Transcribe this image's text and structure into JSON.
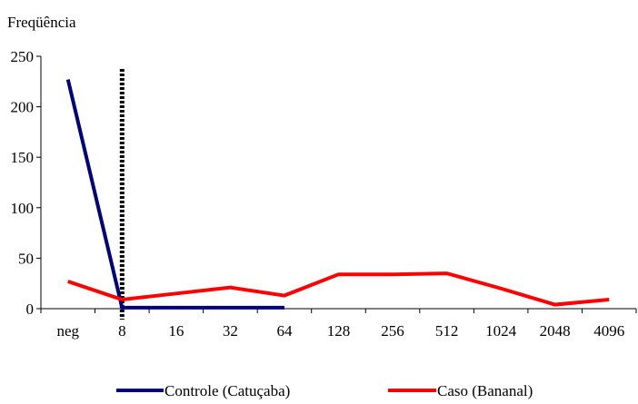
{
  "chart_data": {
    "type": "line",
    "title": "",
    "xlabel": "",
    "ylabel": "Freqüência",
    "categories": [
      "neg",
      "8",
      "16",
      "32",
      "64",
      "128",
      "256",
      "512",
      "1024",
      "2048",
      "4096"
    ],
    "ylim": [
      0,
      250
    ],
    "yticks": [
      0,
      50,
      100,
      150,
      200,
      250
    ],
    "grid": false,
    "legend_position": "bottom",
    "series": [
      {
        "name": "Controle (Catuçaba)",
        "color": "#000080",
        "values": [
          227,
          1,
          1,
          1,
          1,
          null,
          null,
          null,
          null,
          null,
          null
        ]
      },
      {
        "name": "Caso (Bananal)",
        "color": "#ff0000",
        "values": [
          27,
          9,
          15,
          21,
          13,
          34,
          34,
          35,
          20,
          4,
          9
        ]
      }
    ],
    "reference_line": {
      "category": "8",
      "style": "dotted",
      "color": "#000000"
    }
  }
}
